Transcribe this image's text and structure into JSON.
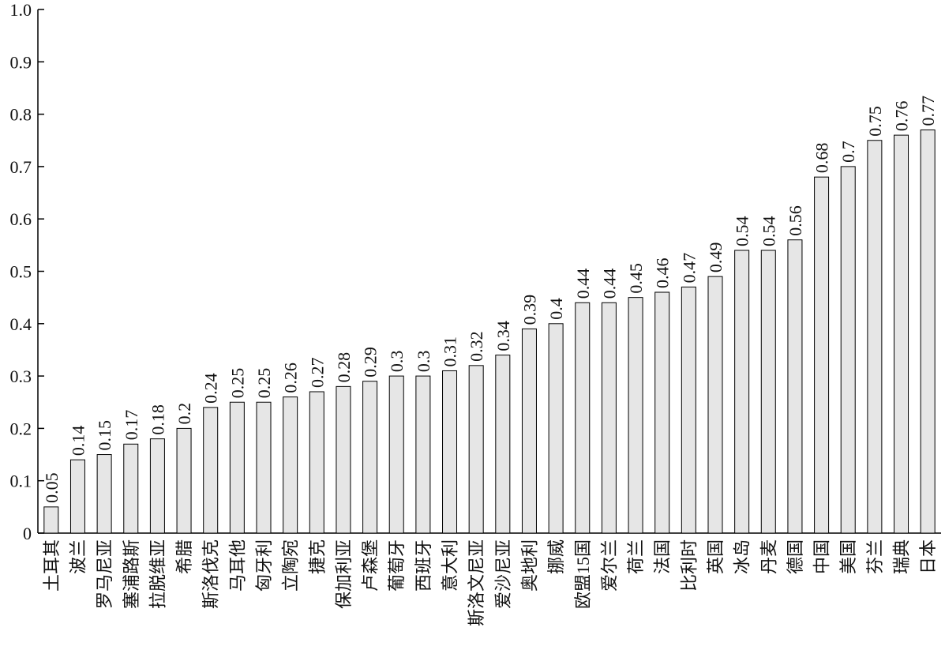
{
  "chart_data": {
    "type": "bar",
    "categories": [
      "土耳其",
      "波兰",
      "罗马尼亚",
      "塞浦路斯",
      "拉脱维亚",
      "希腊",
      "斯洛伐克",
      "马耳他",
      "匈牙利",
      "立陶宛",
      "捷克",
      "保加利亚",
      "卢森堡",
      "葡萄牙",
      "西班牙",
      "意大利",
      "斯洛文尼亚",
      "爱沙尼亚",
      "奥地利",
      "挪威",
      "欧盟15国",
      "爱尔兰",
      "荷兰",
      "法国",
      "比利时",
      "英国",
      "冰岛",
      "丹麦",
      "德国",
      "中国",
      "美国",
      "芬兰",
      "瑞典",
      "日本"
    ],
    "values": [
      0.05,
      0.14,
      0.15,
      0.17,
      0.18,
      0.2,
      0.24,
      0.25,
      0.25,
      0.26,
      0.27,
      0.28,
      0.29,
      0.3,
      0.3,
      0.31,
      0.32,
      0.34,
      0.39,
      0.4,
      0.44,
      0.44,
      0.45,
      0.46,
      0.47,
      0.49,
      0.54,
      0.54,
      0.56,
      0.68,
      0.7,
      0.75,
      0.76,
      0.77
    ],
    "color": "#e6e6e6",
    "ylim": [
      0,
      1
    ],
    "yticks": [
      0,
      0.1,
      0.2,
      0.3,
      0.4,
      0.5,
      0.6,
      0.7,
      0.8,
      0.9,
      {
        "value": 1,
        "label": "1.0"
      }
    ],
    "grid": false
  }
}
